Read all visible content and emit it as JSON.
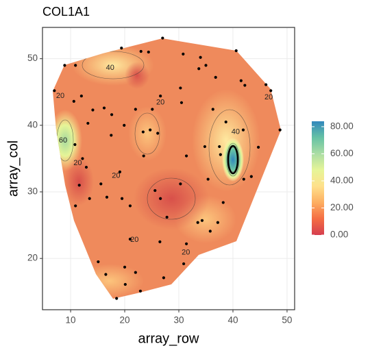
{
  "chart_data": {
    "type": "scatter",
    "title": "COL1A1",
    "x_label": "array_row",
    "y_label": "array_col",
    "xlim": [
      4.8,
      51.4
    ],
    "ylim": [
      12.3,
      54.7
    ],
    "xticks": [
      10,
      20,
      30,
      40,
      50
    ],
    "yticks": [
      20,
      30,
      40,
      50
    ],
    "grid": true,
    "point_color": "#000000",
    "x": [
      27,
      19.4,
      23,
      24.4,
      40.6,
      8.9,
      10.9,
      30.8,
      34,
      35,
      33.7,
      36.8,
      41.5,
      42.2,
      46.1,
      47,
      7,
      12,
      10.6,
      14.1,
      16.2,
      13.2,
      17.6,
      22,
      25.1,
      30.5,
      30.3,
      26.6,
      19.9,
      23.4,
      24.7,
      26.1,
      36.3,
      38.7,
      48.7,
      41.9,
      10.8,
      34.8,
      37.7,
      37.5,
      44.7,
      12.2,
      19.1,
      23.5,
      31.4,
      35.4,
      42,
      43.4,
      15.6,
      11.6,
      13.5,
      16.7,
      19.5,
      25.6,
      30.3,
      26.6,
      21,
      10.9,
      38.2,
      27.8,
      33.5,
      34.3,
      37.2,
      35.8,
      21,
      26.5,
      31.4,
      15.1,
      16.5,
      20,
      22,
      30.9,
      27.2,
      20.1,
      22.9,
      18.5,
      12.9,
      17.5
    ],
    "y": [
      53.1,
      51.6,
      51.1,
      51,
      51.2,
      49,
      49,
      50.7,
      50.2,
      49,
      48.5,
      47.2,
      46.7,
      46,
      46.1,
      45.2,
      45.2,
      44.4,
      43.6,
      42.3,
      42.6,
      40.3,
      41.6,
      42.4,
      42.4,
      43.4,
      45.6,
      44.4,
      40,
      39,
      39.3,
      38.8,
      42.4,
      40.5,
      39.3,
      39.3,
      37.1,
      36.8,
      35.6,
      36.8,
      36.7,
      35,
      33,
      35.4,
      35.4,
      31.9,
      31.9,
      32.3,
      31.2,
      31,
      29,
      29.2,
      29,
      30.2,
      31.2,
      29,
      27.9,
      27.9,
      28.4,
      26.2,
      25.4,
      25.7,
      25.4,
      24.1,
      22.9,
      22.5,
      22.2,
      19.5,
      17.6,
      18.7,
      17.9,
      19.2,
      17.1,
      16.1,
      15.1,
      14,
      33.7,
      38.5
    ],
    "contour_labels": [
      {
        "text": "40",
        "x": 17.3,
        "y": 48.6
      },
      {
        "text": "20",
        "x": 8.1,
        "y": 44.4
      },
      {
        "text": "20",
        "x": 26.6,
        "y": 43.4
      },
      {
        "text": "20",
        "x": 46.6,
        "y": 44.2
      },
      {
        "text": "40",
        "x": 40.5,
        "y": 39
      },
      {
        "text": "60",
        "x": 8.6,
        "y": 37.7
      },
      {
        "text": "20",
        "x": 11.3,
        "y": 34.3
      },
      {
        "text": "20",
        "x": 18.4,
        "y": 32.4
      },
      {
        "text": "20",
        "x": 21.8,
        "y": 22.8
      },
      {
        "text": "20",
        "x": 31.3,
        "y": 20.9
      }
    ],
    "colorbar": {
      "lim": [
        0,
        84
      ],
      "ticks": [
        {
          "value": 0,
          "label": "0.00"
        },
        {
          "value": 20,
          "label": "20.00"
        },
        {
          "value": 40,
          "label": "40.00"
        },
        {
          "value": 60,
          "label": "60.00"
        },
        {
          "value": 80,
          "label": "80.00"
        }
      ],
      "colors": [
        "#d53e4f",
        "#f46d43",
        "#fdae61",
        "#fee08b",
        "#e6f598",
        "#abdda4",
        "#66c2a5",
        "#3288bd"
      ]
    }
  }
}
